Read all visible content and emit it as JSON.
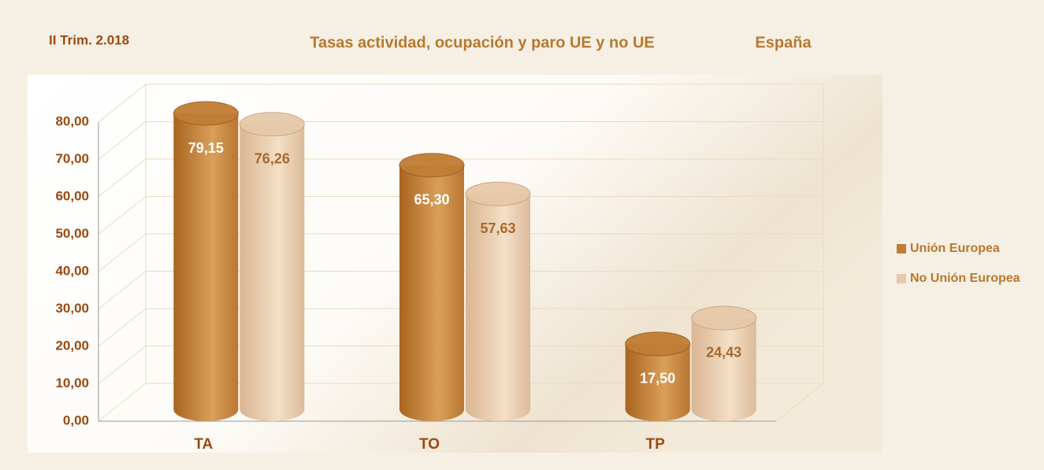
{
  "chart_data": {
    "type": "bar3d",
    "subtitle": "II Trim. 2.018",
    "title": "Tasas actividad, ocupación y paro UE y no UE",
    "region": "España",
    "categories": [
      "TA",
      "TO",
      "TP"
    ],
    "series": [
      {
        "name": "Unión Europea",
        "color": "#c07d35",
        "values": [
          79.15,
          65.3,
          17.5
        ],
        "value_labels": [
          "79,15",
          "65,30",
          "17,50"
        ]
      },
      {
        "name": "No Unión Europea",
        "color": "#e6c9a9",
        "values": [
          76.26,
          57.63,
          24.43
        ],
        "value_labels": [
          "76,26",
          "57,63",
          "24,43"
        ]
      }
    ],
    "ylim": [
      0,
      80
    ],
    "yticks": [
      {
        "value": 0,
        "label": "0,00"
      },
      {
        "value": 10,
        "label": "10,00"
      },
      {
        "value": 20,
        "label": "20,00"
      },
      {
        "value": 30,
        "label": "30,00"
      },
      {
        "value": 40,
        "label": "40,00"
      },
      {
        "value": 50,
        "label": "50,00"
      },
      {
        "value": 60,
        "label": "60,00"
      },
      {
        "value": 70,
        "label": "70,00"
      },
      {
        "value": 80,
        "label": "80,00"
      }
    ],
    "grid": true,
    "legend": "right"
  }
}
